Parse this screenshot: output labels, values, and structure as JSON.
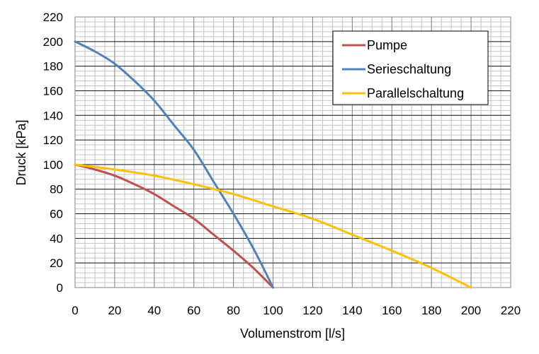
{
  "chart_data": {
    "type": "line",
    "xlabel": "Volumenstrom [l/s]",
    "ylabel": "Druck [kPa]",
    "xlim": [
      0,
      220
    ],
    "ylim": [
      0,
      220
    ],
    "x_ticks": [
      0,
      20,
      40,
      60,
      80,
      100,
      120,
      140,
      160,
      180,
      200,
      220
    ],
    "y_ticks": [
      0,
      20,
      40,
      60,
      80,
      100,
      120,
      140,
      160,
      180,
      200,
      220
    ],
    "grid": true,
    "legend_position": "top-right",
    "series": [
      {
        "name": "Pumpe",
        "color": "#C0504D",
        "x": [
          0,
          10,
          20,
          30,
          40,
          50,
          60,
          70,
          80,
          90,
          100
        ],
        "y": [
          100,
          96,
          91,
          84,
          76,
          66,
          56,
          43,
          30,
          16,
          0
        ]
      },
      {
        "name": "Serieschaltung",
        "color": "#4F81BD",
        "x": [
          0,
          10,
          20,
          30,
          40,
          50,
          60,
          70,
          80,
          90,
          100
        ],
        "y": [
          200,
          192,
          182,
          168,
          152,
          132,
          112,
          86,
          60,
          32,
          0
        ]
      },
      {
        "name": "Parallelschaltung",
        "color": "#FFC000",
        "x": [
          0,
          20,
          40,
          60,
          80,
          100,
          120,
          140,
          160,
          180,
          200
        ],
        "y": [
          100,
          96,
          91,
          84,
          76,
          66,
          56,
          43,
          30,
          16,
          0
        ]
      }
    ]
  }
}
